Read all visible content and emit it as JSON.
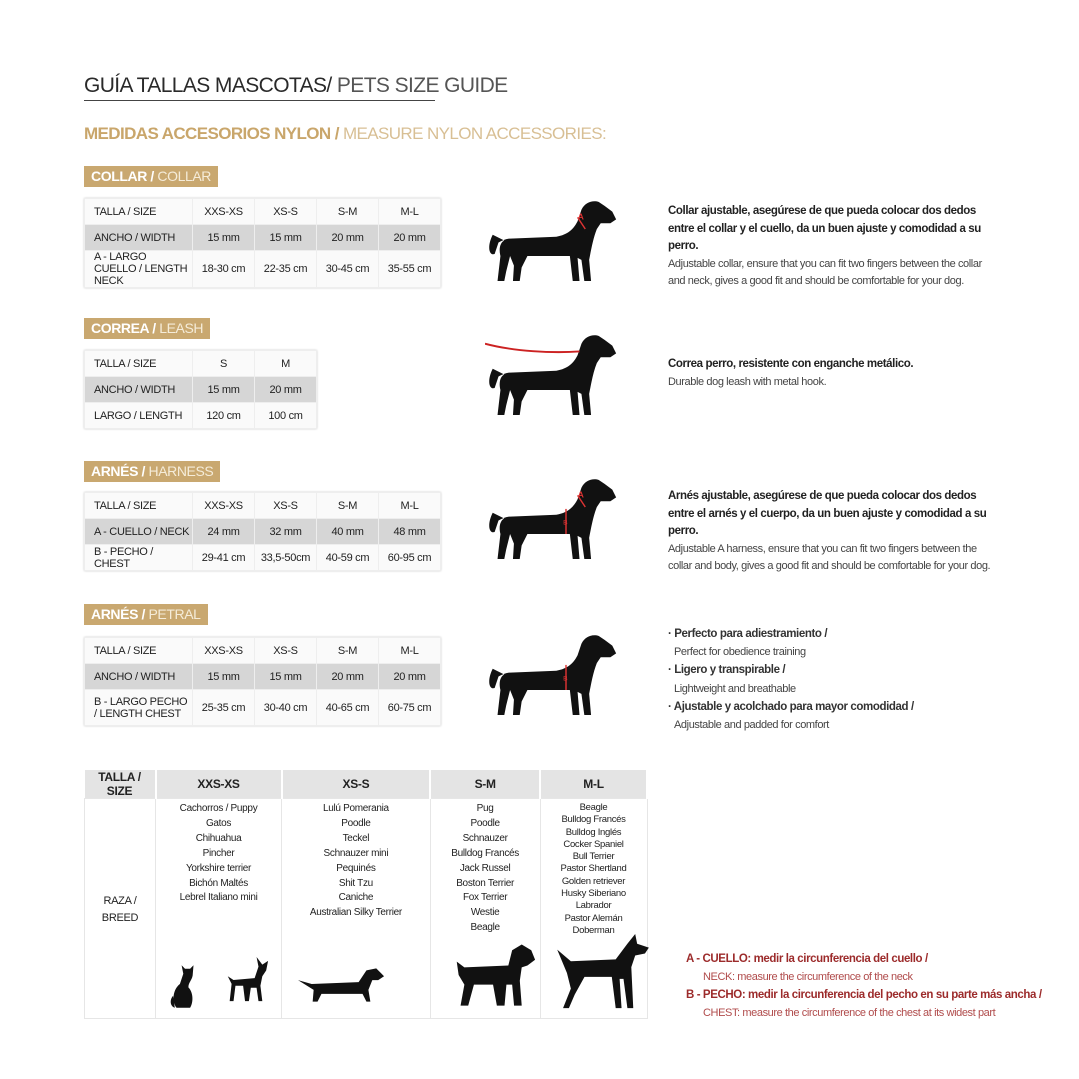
{
  "header": {
    "title_es": "GUÍA TALLAS MASCOTAS/",
    "title_en": " PETS SIZE GUIDE",
    "subtitle_es": "MEDIDAS ACCESORIOS NYLON /",
    "subtitle_en": " MEASURE NYLON ACCESSORIES:"
  },
  "colors": {
    "gold": "#c9a870",
    "accent_red": "#9c2b2b",
    "shade": "#d6d6d6"
  },
  "sections": [
    {
      "label_es": "COLLAR /",
      "label_en": " COLLAR",
      "rows": [
        {
          "label": "TALLA / SIZE",
          "values": [
            "XXS-XS",
            "XS-S",
            "S-M",
            "M-L"
          ]
        },
        {
          "label": "ANCHO / WIDTH",
          "values": [
            "15 mm",
            "15 mm",
            "20 mm",
            "20 mm"
          ]
        },
        {
          "label": "A - LARGO CUELLO / LENGTH NECK",
          "values": [
            "18-30 cm",
            "22-35 cm",
            "30-45 cm",
            "35-55 cm"
          ]
        }
      ],
      "desc_es": "Collar ajustable, asegúrese de que pueda colocar dos dedos entre el collar y el cuello, da un buen ajuste y comodidad a su perro.",
      "desc_en": "Adjustable collar, ensure that you can fit two fingers between the collar and neck, gives a good fit and should be comfortable for your dog.",
      "dog_markers": "A"
    },
    {
      "label_es": "CORREA /",
      "label_en": " LEASH",
      "rows": [
        {
          "label": "TALLA / SIZE",
          "values": [
            "S",
            "M"
          ]
        },
        {
          "label": "ANCHO / WIDTH",
          "values": [
            "15 mm",
            "20 mm"
          ]
        },
        {
          "label": "LARGO / LENGTH",
          "values": [
            "120 cm",
            "100 cm"
          ]
        }
      ],
      "desc_es": "Correa perro, resistente con enganche metálico.",
      "desc_en": "Durable dog leash with metal hook.",
      "dog_markers": "leash"
    },
    {
      "label_es": "ARNÉS /",
      "label_en": " HARNESS",
      "rows": [
        {
          "label": "TALLA / SIZE",
          "values": [
            "XXS-XS",
            "XS-S",
            "S-M",
            "M-L"
          ]
        },
        {
          "label": "A - CUELLO / NECK",
          "values": [
            "24 mm",
            "32 mm",
            "40 mm",
            "48 mm"
          ]
        },
        {
          "label": "B - PECHO / CHEST",
          "values": [
            "29-41 cm",
            "33,5-50cm",
            "40-59 cm",
            "60-95 cm"
          ]
        }
      ],
      "desc_es": "Arnés ajustable, asegúrese de que pueda colocar dos dedos entre el arnés y el cuerpo, da un buen ajuste y comodidad a su perro.",
      "desc_en": "Adjustable A harness, ensure that you can fit two fingers between the collar and body, gives a good fit and should be comfortable for your dog.",
      "dog_markers": "AB"
    },
    {
      "label_es": "ARNÉS /",
      "label_en": " PETRAL",
      "rows": [
        {
          "label": "TALLA / SIZE",
          "values": [
            "XXS-XS",
            "XS-S",
            "S-M",
            "M-L"
          ]
        },
        {
          "label": "ANCHO / WIDTH",
          "values": [
            "15 mm",
            "15 mm",
            "20 mm",
            "20 mm"
          ]
        },
        {
          "label": "B - LARGO PECHO / LENGTH CHEST",
          "values": [
            "25-35 cm",
            "30-40 cm",
            "40-65 cm",
            "60-75 cm"
          ]
        }
      ],
      "dog_markers": "B"
    }
  ],
  "features": [
    {
      "es": "· Perfecto para adiestramiento /",
      "en": "Perfect for obedience training"
    },
    {
      "es": "· Ligero y transpirable /",
      "en": "Lightweight and breathable"
    },
    {
      "es": "· Ajustable y acolchado para mayor comodidad /",
      "en": "Adjustable and padded for comfort"
    }
  ],
  "breed_table": {
    "size_label": "TALLA /  SIZE",
    "row_label": "RAZA / BREED",
    "columns": [
      {
        "size": "XXS-XS",
        "breeds": [
          "Cachorros / Puppy",
          "Gatos",
          "Chihuahua",
          "Pincher",
          "Yorkshire terrier",
          "Bichón Maltés",
          "Lebrel Italiano mini"
        ],
        "icons": [
          "cat-silhouette",
          "chihuahua-silhouette"
        ]
      },
      {
        "size": "XS-S",
        "breeds": [
          "Lulú Pomerania",
          "Poodle",
          "Teckel",
          "Schnauzer mini",
          "Pequinés",
          "Shit Tzu",
          "Caniche",
          "Australian Silky Terrier"
        ],
        "icons": [
          "dachshund-silhouette"
        ]
      },
      {
        "size": "S-M",
        "breeds": [
          "Pug",
          "Poodle",
          "Schnauzer",
          "Bulldog Francés",
          "Jack Russel",
          "Boston Terrier",
          "Fox Terrier",
          "Westie",
          "Beagle"
        ],
        "icons": [
          "schnauzer-silhouette"
        ]
      },
      {
        "size": "M-L",
        "breeds": [
          "Beagle",
          "Bulldog Francés",
          "Bulldog Inglés",
          "Cocker Spaniel",
          "Bull Terrier",
          "Pastor Shertland",
          "Golden retriever",
          "Husky Siberiano",
          "Labrador",
          "Pastor Alemán",
          "Doberman"
        ],
        "icons": [
          "doberman-silhouette"
        ]
      }
    ]
  },
  "notes": [
    {
      "es": "A - CUELLO: medir la circunferencia del cuello /",
      "en": "NECK: measure the circumference of the neck"
    },
    {
      "es": "B - PECHO: medir la circunferencia del pecho en su parte más ancha /",
      "en": "CHEST: measure the circumference of the chest at its widest part"
    }
  ]
}
